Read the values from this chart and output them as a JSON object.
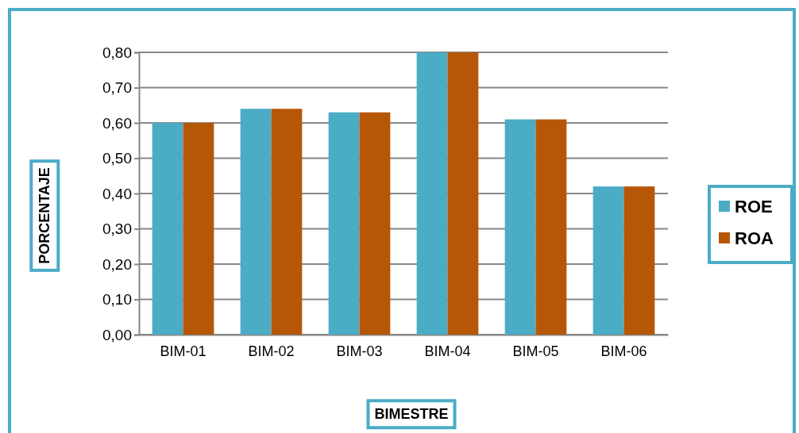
{
  "chart_data": {
    "type": "bar",
    "xlabel": "BIMESTRE",
    "ylabel": "PORCENTAJE",
    "categories": [
      "BIM-01",
      "BIM-02",
      "BIM-03",
      "BIM-04",
      "BIM-05",
      "BIM-06"
    ],
    "series": [
      {
        "name": "ROE",
        "color": "#4bacc6",
        "values": [
          0.6,
          0.64,
          0.63,
          0.8,
          0.61,
          0.42
        ]
      },
      {
        "name": "ROA",
        "color": "#b65708",
        "values": [
          0.6,
          0.64,
          0.63,
          0.8,
          0.61,
          0.42
        ]
      }
    ],
    "ylim": [
      0,
      0.8
    ],
    "yticks": [
      {
        "value": 0,
        "label": "0,00"
      },
      {
        "value": 0.1,
        "label": "0,10"
      },
      {
        "value": 0.2,
        "label": "0,20"
      },
      {
        "value": 0.3,
        "label": "0,30"
      },
      {
        "value": 0.4,
        "label": "0,40"
      },
      {
        "value": 0.5,
        "label": "0,50"
      },
      {
        "value": 0.6,
        "label": "0,60"
      },
      {
        "value": 0.7,
        "label": "0,70"
      },
      {
        "value": 0.8,
        "label": "0,80"
      }
    ],
    "grid": "y",
    "legend": "right"
  }
}
